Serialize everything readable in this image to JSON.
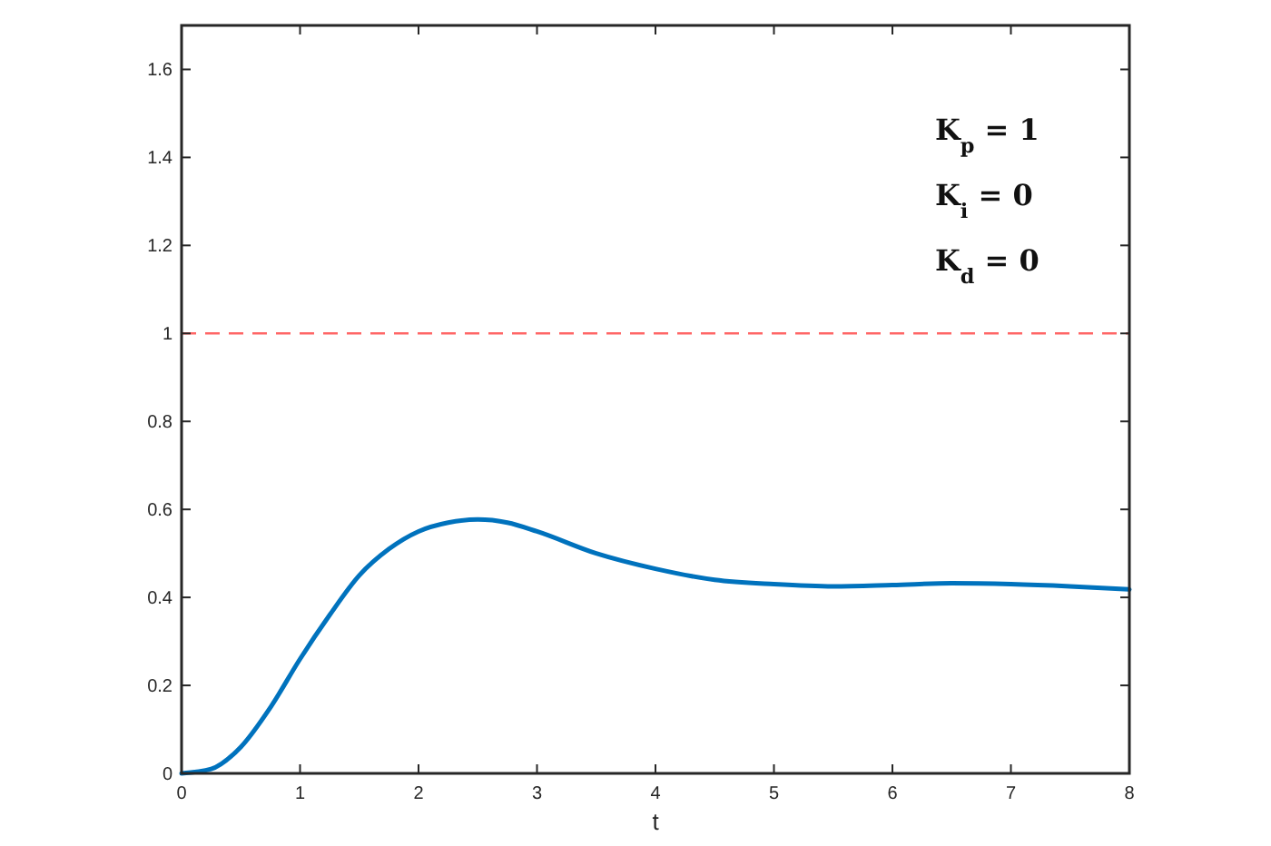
{
  "chart_data": {
    "type": "line",
    "xlabel": "t",
    "x": [
      0,
      0.25,
      0.5,
      0.75,
      1,
      1.25,
      1.5,
      1.75,
      2,
      2.25,
      2.5,
      2.75,
      3,
      3.5,
      4,
      4.5,
      5,
      5.5,
      6,
      6.5,
      7,
      7.5,
      8
    ],
    "series": [
      {
        "color": "#0072bd",
        "values": [
          0,
          0.01,
          0.06,
          0.15,
          0.26,
          0.36,
          0.45,
          0.51,
          0.55,
          0.57,
          0.577,
          0.57,
          0.55,
          0.5,
          0.465,
          0.44,
          0.43,
          0.425,
          0.428,
          0.432,
          0.43,
          0.425,
          0.418
        ]
      }
    ],
    "xlim": [
      0,
      8
    ],
    "xticks": [
      0,
      1,
      2,
      3,
      4,
      5,
      6,
      7,
      8
    ],
    "ylim": [
      0,
      1.7
    ],
    "yticks": [
      0,
      0.2,
      0.4,
      0.6,
      0.8,
      1,
      1.2,
      1.4,
      1.6
    ],
    "ref_lines": [
      {
        "axis": "y",
        "value": 1,
        "color": "#ff6666",
        "line_style": "dashed"
      }
    ],
    "annotations": [
      "K$_{p}$ = 1",
      "K$_{i}$ = 0",
      "K$_{d}$ = 0"
    ],
    "grid": false,
    "marker": "none",
    "line_style": "solid"
  }
}
